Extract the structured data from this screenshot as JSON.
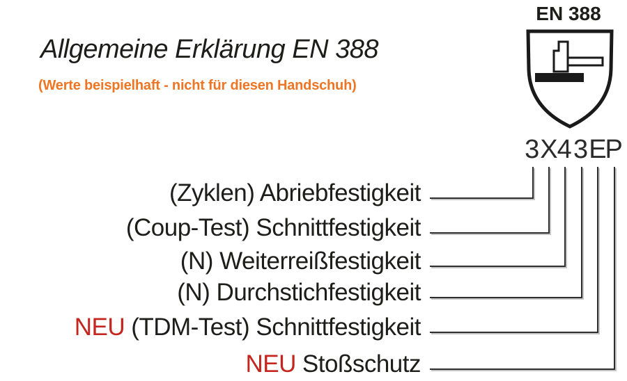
{
  "header": {
    "title": "Allgemeine Erklärung EN 388",
    "subtitle": "(Werte beispielhaft - nicht für diesen Handschuh)"
  },
  "pictogram": {
    "label": "EN 388",
    "icon": "en388-mechanical-hazard-shield-hammer-icon"
  },
  "code": {
    "value": "3X43EP"
  },
  "legend": {
    "rows": [
      {
        "prefix": "",
        "label": "(Zyklen) Abriebfestigkeit",
        "code_char": "3"
      },
      {
        "prefix": "",
        "label": "(Coup-Test) Schnittfestigkeit",
        "code_char": "X"
      },
      {
        "prefix": "",
        "label": "(N) Weiterreißfestigkeit",
        "code_char": "4"
      },
      {
        "prefix": "",
        "label": "(N) Durchstichfestigkeit",
        "code_char": "3"
      },
      {
        "prefix": "NEU",
        "label": "(TDM-Test) Schnittfestigkeit",
        "code_char": "E"
      },
      {
        "prefix": "NEU",
        "label": "Stoßschutz",
        "code_char": "P"
      }
    ]
  },
  "colors": {
    "text": "#1d1d1b",
    "accent_orange": "#ee7523",
    "accent_red": "#c4251e",
    "line": "#2e2e2e"
  }
}
